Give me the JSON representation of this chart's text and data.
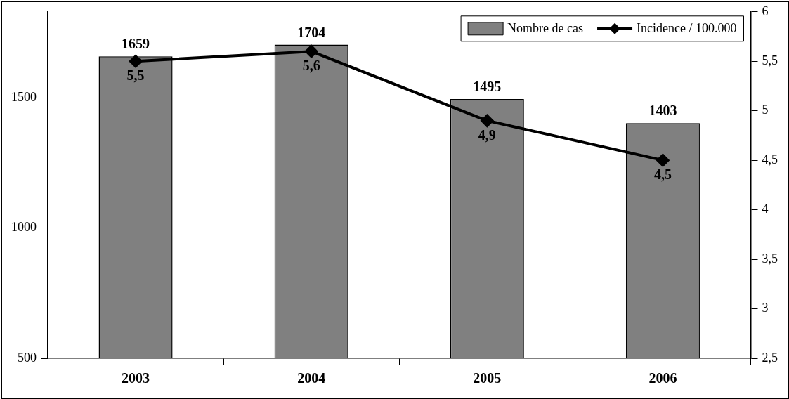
{
  "chart_data": {
    "type": "bar",
    "categories": [
      "2003",
      "2004",
      "2005",
      "2006"
    ],
    "series": [
      {
        "name": "Nombre de cas",
        "color": "#808080",
        "values": [
          1659,
          1704,
          1495,
          1403
        ],
        "value_labels": [
          "1659",
          "1704",
          "1495",
          "1403"
        ]
      },
      {
        "name": "Incidence / 100.000",
        "type": "line",
        "axis": "y2",
        "color": "#000000",
        "values": [
          5.5,
          5.6,
          4.9,
          4.5
        ],
        "value_labels": [
          "5,5",
          "5,6",
          "4,9",
          "4,5"
        ]
      }
    ],
    "ylim": [
      500,
      1830
    ],
    "yticks": [
      500,
      1000,
      1500
    ],
    "y2lim": [
      2.5,
      6
    ],
    "y2ticks": [
      {
        "value": 2.5,
        "label": "2,5"
      },
      3,
      {
        "value": 3.5,
        "label": "3,5"
      },
      4,
      {
        "value": 4.5,
        "label": "4,5"
      },
      5,
      {
        "value": 5.5,
        "label": "5,5"
      },
      6
    ],
    "legend": "top right",
    "grid": false,
    "marker": "diamond",
    "line_style": "solid"
  }
}
